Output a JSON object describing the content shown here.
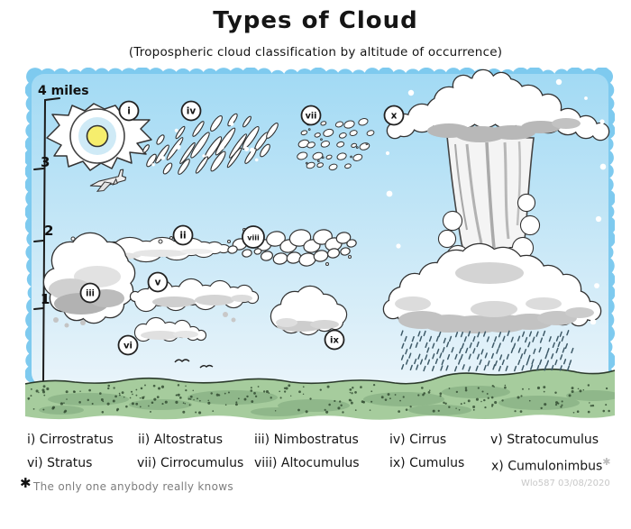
{
  "title": "Types of Cloud",
  "subtitle": "(Tropospheric cloud classification by altitude of occurrence)",
  "axis": {
    "top_label": "4 miles",
    "ticks": [
      "3",
      "2",
      "1"
    ]
  },
  "diagram": {
    "markers": [
      "i",
      "ii",
      "iii",
      "iv",
      "v",
      "vi",
      "vii",
      "viii",
      "ix",
      "x"
    ]
  },
  "legend": {
    "items": [
      "i) Cirrostratus",
      "ii) Altostratus",
      "iii) Nimbostratus",
      "iv) Cirrus",
      "v) Stratocumulus",
      "vi) Stratus",
      "vii) Cirrocumulus",
      "viii) Altocumulus",
      "ix) Cumulus",
      "x) Cumulonimbus"
    ],
    "note_marker": "✱"
  },
  "footnote": {
    "marker": "✱",
    "text": "The only one anybody really knows"
  },
  "signature": {
    "text": "Wlo587 03/08/2020"
  },
  "colors": {
    "border_blue": "#7ecaef",
    "sky_top": "#a2daf4",
    "sky_bottom": "#e9f4fa",
    "ground_green": "#a6cc9d",
    "sun_yellow": "#f6ee6d",
    "halo_blue": "#cfeaf6",
    "rain": "#3e5a68",
    "outline": "#333333"
  }
}
